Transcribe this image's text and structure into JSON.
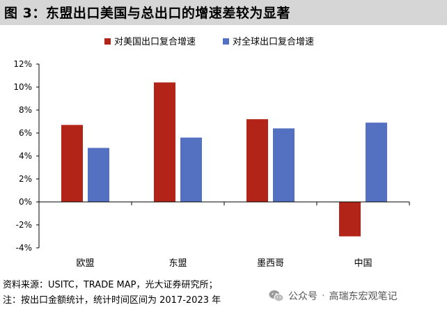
{
  "title": "图 3：东盟出口美国与总出口的增速差较为显著",
  "chart_data": {
    "type": "bar",
    "categories": [
      "欧盟",
      "东盟",
      "墨西哥",
      "中国"
    ],
    "series": [
      {
        "name": "对美国出口复合增速",
        "color": "#b22417",
        "values": [
          6.7,
          10.4,
          7.2,
          -3.0
        ]
      },
      {
        "name": "对全球出口复合增速",
        "color": "#5470c0",
        "values": [
          4.7,
          5.6,
          6.4,
          6.9
        ]
      }
    ],
    "y_ticks": [
      -4,
      -2,
      0,
      2,
      4,
      6,
      8,
      10,
      12
    ],
    "y_tick_labels": [
      "-4%",
      "-2%",
      "0%",
      "2%",
      "4%",
      "6%",
      "8%",
      "10%",
      "12%"
    ],
    "ylim": [
      -4,
      12
    ],
    "legend_position": "top",
    "grid": false
  },
  "footer": {
    "source": "资料来源：USITC，TRADE MAP，光大证券研究所；",
    "note": "注：按出口金额统计，统计时间区间为 2017-2023 年"
  },
  "watermark": {
    "icon": "wechat-icon",
    "label": "公众号",
    "separator": "·",
    "account": "高瑞东宏观笔记"
  }
}
